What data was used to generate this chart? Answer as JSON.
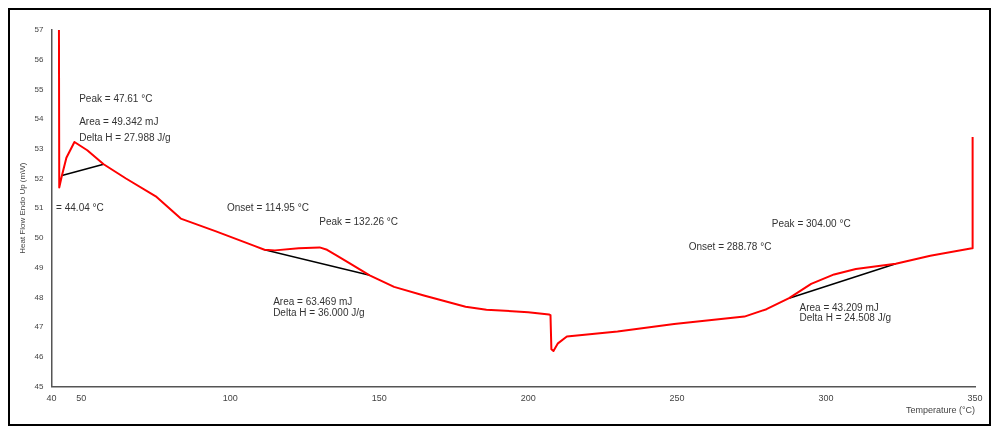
{
  "chart_data": {
    "type": "line",
    "xlabel": "Temperature (°C)",
    "ylabel": "Heat Flow Endo Up (mW)",
    "xlim": [
      40,
      350
    ],
    "xticks": [
      40,
      50,
      100,
      150,
      200,
      250,
      300,
      350
    ],
    "ylim": [
      45,
      57
    ],
    "yticks": [
      45,
      46,
      47,
      48,
      49,
      50,
      51,
      52,
      53,
      54,
      55,
      56,
      57
    ],
    "series": [
      {
        "color": "#ff0000",
        "x": [
          42.5,
          42.6,
          43.5,
          45,
          47.7,
          52,
          57.5,
          65,
          75,
          83.4,
          95,
          105,
          111.5,
          115,
          123,
          130,
          132.5,
          140,
          146.8,
          155,
          165,
          179,
          186,
          200,
          207,
          207.5,
          207.8,
          208.5,
          210,
          213,
          230,
          249,
          272.6,
          280,
          287.6,
          295,
          302.7,
          310,
          323.4,
          335,
          349,
          349.2
        ],
        "values": [
          57,
          51.7,
          52.1,
          52.7,
          53.23,
          52.95,
          52.48,
          52.0,
          51.4,
          50.65,
          50.23,
          49.85,
          49.6,
          49.58,
          49.65,
          49.68,
          49.6,
          49.15,
          48.74,
          48.35,
          48.06,
          47.68,
          47.58,
          47.5,
          47.42,
          47.4,
          46.25,
          46.19,
          46.45,
          46.68,
          46.85,
          47.1,
          47.35,
          47.6,
          47.97,
          48.45,
          48.77,
          48.95,
          49.13,
          49.4,
          49.65,
          53.4
        ]
      },
      {
        "color": "#000000",
        "x": [
          43.5,
          57.5
        ],
        "values": [
          52.1,
          52.48
        ]
      },
      {
        "color": "#000000",
        "x": [
          111.5,
          146.8
        ],
        "values": [
          49.6,
          48.74
        ]
      },
      {
        "color": "#000000",
        "x": [
          287.6,
          323.4
        ],
        "values": [
          47.97,
          49.13
        ]
      }
    ],
    "annotations": [
      "Peak = 47.61 °C",
      "Area = 49.342 mJ",
      "Delta H = 27.988 J/g",
      "= 44.04 °C",
      "Onset = 114.95 °C",
      "Peak = 132.26 °C",
      "Area = 63.469 mJ",
      "Delta H = 36.000 J/g",
      "Peak = 304.00 °C",
      "Onset = 288.78 °C",
      "Area = 43.209 mJ",
      "Delta H = 24.508 J/g"
    ]
  }
}
